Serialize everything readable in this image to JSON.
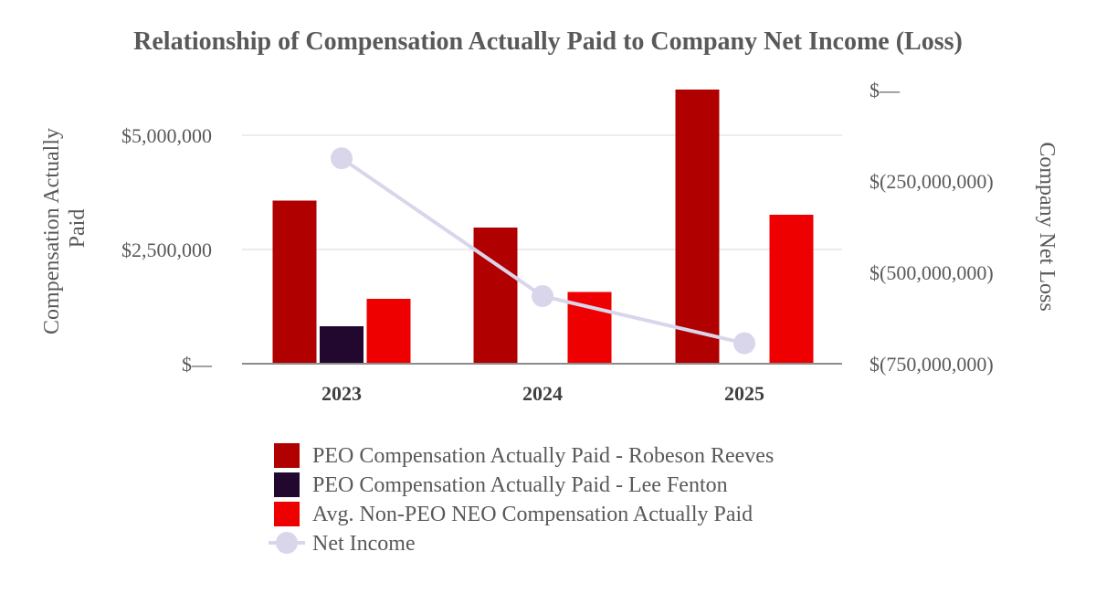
{
  "chart_data": {
    "type": "bar",
    "title": "Relationship of Compensation Actually Paid to Company Net Income (Loss)",
    "categories": [
      "2023",
      "2024",
      "2025"
    ],
    "ylabel_left": [
      "Compensation Actually",
      "Paid"
    ],
    "ylabel_right": "Company Net Loss",
    "ylim_left": [
      0,
      6000000
    ],
    "ylim_right": [
      -750000000,
      0
    ],
    "left_ticks": [
      {
        "value": 0,
        "label": "$—"
      },
      {
        "value": 2500000,
        "label": "$2,500,000"
      },
      {
        "value": 5000000,
        "label": "$5,000,000"
      }
    ],
    "right_ticks": [
      {
        "value": 0,
        "label": "$—"
      },
      {
        "value": -250000000,
        "label": "$(250,000,000)"
      },
      {
        "value": -500000000,
        "label": "$(500,000,000)"
      },
      {
        "value": -750000000,
        "label": "$(750,000,000)"
      }
    ],
    "grid": true,
    "legend_position": "bottom",
    "series": [
      {
        "name": "PEO Compensation Actually Paid - Robeson Reeves",
        "type": "bar",
        "axis": "left",
        "color": "#B00000",
        "values": [
          3570000,
          2980000,
          6000000
        ]
      },
      {
        "name": "PEO Compensation Actually Paid - Lee Fenton",
        "type": "bar",
        "axis": "left",
        "color": "#22082F",
        "values": [
          820000,
          null,
          null
        ]
      },
      {
        "name": "Avg. Non-PEO NEO Compensation Actually Paid",
        "type": "bar",
        "axis": "left",
        "color": "#EE0000",
        "values": [
          1420000,
          1570000,
          3260000
        ]
      },
      {
        "name": "Net Income",
        "type": "line",
        "axis": "right",
        "color": "#D9D6EC",
        "values": [
          -188000000,
          -565000000,
          -694000000
        ]
      }
    ]
  }
}
